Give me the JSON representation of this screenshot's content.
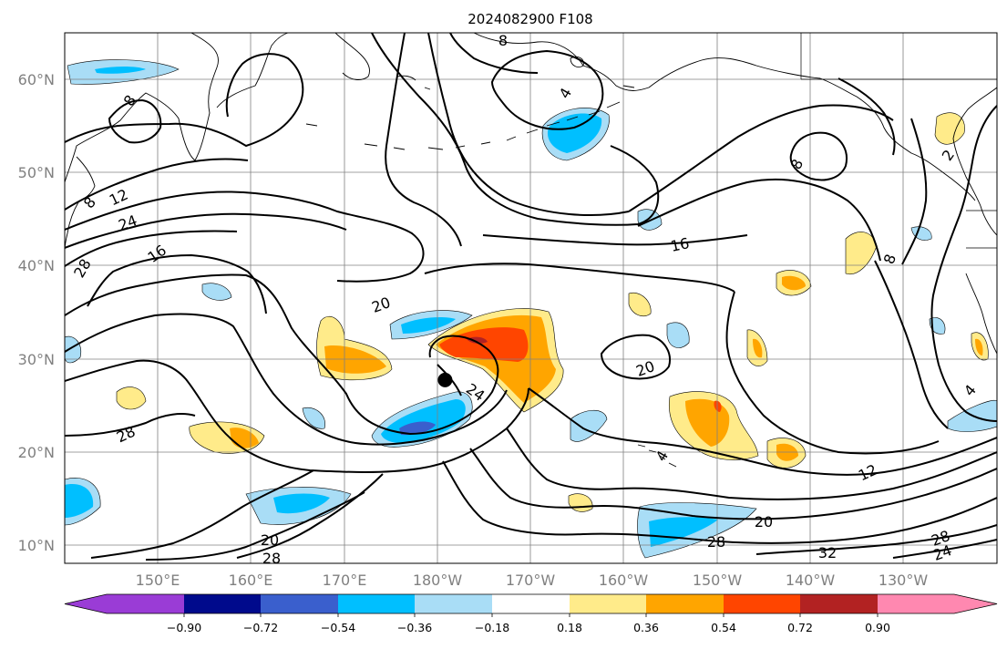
{
  "title": "2024082900 F108",
  "map": {
    "lat_labels": [
      "10°N",
      "20°N",
      "30°N",
      "40°N",
      "50°N",
      "60°N"
    ],
    "lon_labels": [
      "150°E",
      "160°E",
      "170°E",
      "180°W",
      "170°W",
      "160°W",
      "150°W",
      "140°W",
      "130°W"
    ],
    "lat_range": [
      8,
      65
    ],
    "lon_range": [
      140,
      240
    ],
    "contour_labels": [
      "8",
      "8",
      "4",
      "8",
      "12",
      "24",
      "16",
      "28",
      "20",
      "24",
      "28",
      "16",
      "8",
      "20",
      "4",
      "12",
      "20",
      "28",
      "32",
      "28",
      "24",
      "20",
      "28",
      "8",
      "2",
      "4"
    ],
    "storm_marker": {
      "lat": 27.7,
      "lon": 180.8
    },
    "fill_colors": [
      "#9a3cd6",
      "#000a8c",
      "#3a5fcd",
      "#00bfff",
      "#a9ddf6",
      "#ffffff",
      "#ffeb8a",
      "#ffa500",
      "#ff4500",
      "#b22222",
      "#ff88b0"
    ]
  },
  "colorbar": {
    "ticks": [
      "−0.90",
      "−0.72",
      "−0.54",
      "−0.36",
      "−0.18",
      "0.18",
      "0.36",
      "0.54",
      "0.72",
      "0.90"
    ]
  }
}
